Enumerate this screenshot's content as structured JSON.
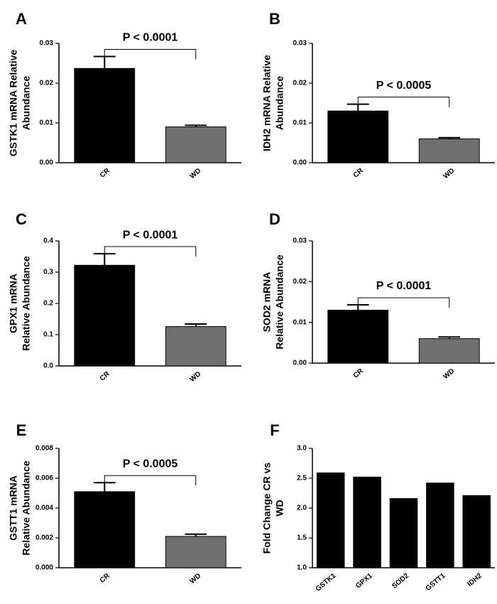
{
  "chart_data": [
    {
      "type": "bar",
      "panel": "A",
      "ylabel": [
        "GSTK1 mRNA Relative",
        "Abundance"
      ],
      "annotation": "P < 0.0001",
      "categories": [
        "CR",
        "WD"
      ],
      "values": [
        0.0237,
        0.009
      ],
      "errors": [
        0.003,
        0.0004
      ],
      "colors": [
        "#000000",
        "#707070"
      ],
      "ylim": [
        0,
        0.03
      ],
      "yticks": [
        {
          "value": 0,
          "label": "0.00"
        },
        0.01,
        0.02,
        0.03
      ]
    },
    {
      "type": "bar",
      "panel": "B",
      "ylabel": [
        "IDH2 mRNA Relative",
        "Abundance"
      ],
      "annotation": "P < 0.0005",
      "categories": [
        "CR",
        "WD"
      ],
      "values": [
        0.013,
        0.006
      ],
      "errors": [
        0.0017,
        0.0003
      ],
      "colors": [
        "#000000",
        "#707070"
      ],
      "ylim": [
        0,
        0.03
      ],
      "yticks": [
        {
          "value": 0,
          "label": "0.00"
        },
        0.01,
        0.02,
        0.03
      ]
    },
    {
      "type": "bar",
      "panel": "C",
      "ylabel": [
        "GPX1 mRNA",
        "Relative Abundance"
      ],
      "annotation": "P < 0.0001",
      "categories": [
        "CR",
        "WD"
      ],
      "values": [
        0.322,
        0.126
      ],
      "errors": [
        0.037,
        0.008
      ],
      "colors": [
        "#000000",
        "#707070"
      ],
      "ylim": [
        0,
        0.4
      ],
      "yticks": [
        {
          "value": 0,
          "label": "0.0"
        },
        0.1,
        0.2,
        0.3,
        0.4
      ]
    },
    {
      "type": "bar",
      "panel": "D",
      "ylabel": [
        "SOD2 mRNA",
        "Relative Abundance"
      ],
      "annotation": "P < 0.0001",
      "categories": [
        "CR",
        "WD"
      ],
      "values": [
        0.013,
        0.006
      ],
      "errors": [
        0.0013,
        0.0004
      ],
      "colors": [
        "#000000",
        "#707070"
      ],
      "ylim": [
        0,
        0.03
      ],
      "yticks": [
        {
          "value": 0,
          "label": "0.00"
        },
        0.01,
        0.02,
        0.03
      ]
    },
    {
      "type": "bar",
      "panel": "E",
      "ylabel": [
        "GSTT1 mRNA",
        "Relative Abundance"
      ],
      "annotation": "P < 0.0005",
      "categories": [
        "CR",
        "WD"
      ],
      "values": [
        0.0051,
        0.0021
      ],
      "errors": [
        0.0006,
        0.00015
      ],
      "colors": [
        "#000000",
        "#707070"
      ],
      "ylim": [
        0,
        0.008
      ],
      "yticks": [
        {
          "value": 0,
          "label": "0.000"
        },
        0.002,
        0.004,
        0.006,
        0.008
      ]
    },
    {
      "type": "bar",
      "panel": "F",
      "ylabel": [
        "Fold Change CR vs",
        "WD"
      ],
      "categories": [
        "GSTK1",
        "GPX1",
        "SOD2",
        "GSTT1",
        "IDH2"
      ],
      "values": [
        2.59,
        2.52,
        2.16,
        2.42,
        2.21
      ],
      "color": "#000000",
      "ylim": [
        1,
        3
      ],
      "yticks": [
        {
          "value": 1,
          "label": "1.0"
        },
        1.5,
        {
          "value": 2,
          "label": "2.0"
        },
        2.5,
        {
          "value": 3,
          "label": "3.0"
        }
      ]
    }
  ]
}
